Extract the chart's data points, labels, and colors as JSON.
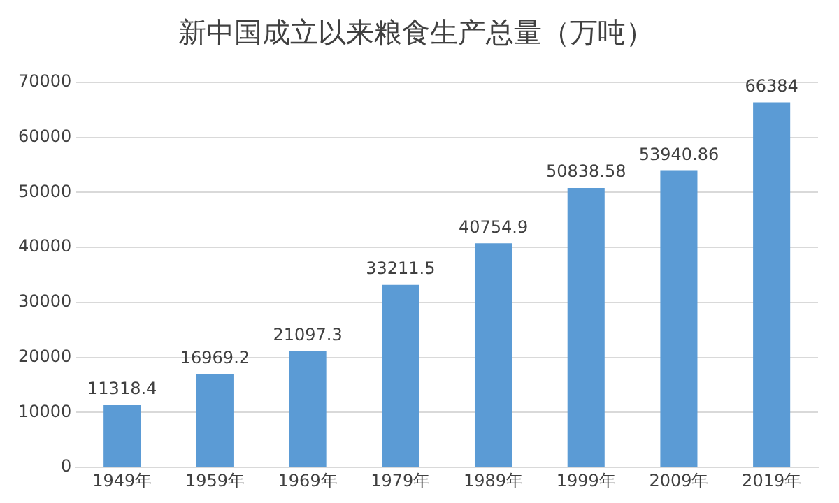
{
  "chart_data": {
    "type": "bar",
    "title": "新中国成立以来粮食生产总量（万吨）",
    "categories": [
      "1949年",
      "1959年",
      "1969年",
      "1979年",
      "1989年",
      "1999年",
      "2009年",
      "2019年"
    ],
    "values": [
      11318.4,
      16969.2,
      21097.3,
      33211.5,
      40754.9,
      50838.58,
      53940.86,
      66384
    ],
    "color": "#5b9bd5",
    "ylim": [
      0,
      70000
    ],
    "yticks": [
      0,
      10000,
      20000,
      30000,
      40000,
      50000,
      60000,
      70000
    ],
    "grid": "y",
    "data_labels": true
  }
}
